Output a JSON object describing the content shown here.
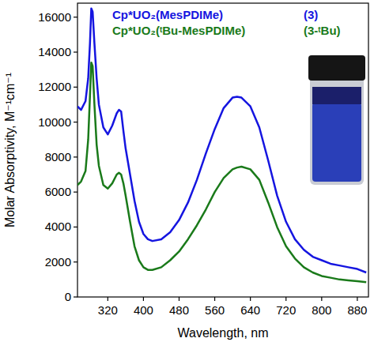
{
  "chart_data": {
    "type": "line",
    "x_label": "Wavelength, nm",
    "y_label": "Molar Absorptivity, M⁻¹cm⁻¹",
    "x": [
      252,
      260,
      270,
      276,
      280,
      283,
      286,
      290,
      295,
      300,
      310,
      320,
      330,
      340,
      345,
      350,
      355,
      360,
      370,
      380,
      390,
      400,
      410,
      420,
      440,
      460,
      480,
      500,
      520,
      540,
      560,
      580,
      600,
      610,
      620,
      640,
      660,
      680,
      700,
      720,
      740,
      760,
      780,
      800,
      820,
      840,
      860,
      880,
      900
    ],
    "series": [
      {
        "name": "Cp*UO₂(MesPDIMe)",
        "color": "#1515e0",
        "values": [
          10900,
          10700,
          11200,
          12500,
          14500,
          16500,
          16300,
          14500,
          12500,
          11000,
          9700,
          9300,
          9800,
          10500,
          10700,
          10600,
          9500,
          8500,
          7000,
          5500,
          4300,
          3600,
          3300,
          3200,
          3300,
          3700,
          4400,
          5400,
          6700,
          8200,
          9600,
          10800,
          11400,
          11450,
          11400,
          10900,
          9700,
          7800,
          5800,
          4300,
          3300,
          2700,
          2300,
          2100,
          1900,
          1800,
          1700,
          1600,
          1400
        ]
      },
      {
        "name": "Cp*UO₂(ᵗBu-MesPDIMe)",
        "color": "#1a7a1a",
        "values": [
          6400,
          6600,
          7200,
          9000,
          11500,
          13400,
          13200,
          11000,
          8700,
          7500,
          6400,
          6200,
          6500,
          7000,
          7100,
          7000,
          6500,
          5800,
          4300,
          2900,
          2100,
          1700,
          1550,
          1550,
          1700,
          2100,
          2600,
          3300,
          4100,
          5000,
          6000,
          6800,
          7300,
          7400,
          7450,
          7300,
          6700,
          5400,
          4000,
          2900,
          2200,
          1700,
          1400,
          1200,
          1100,
          1000,
          950,
          900,
          850
        ]
      }
    ],
    "annotations": [
      "(3)",
      "(3-ᵗBu)"
    ],
    "xlim": [
      252,
      905
    ],
    "xticks": [
      320,
      400,
      480,
      560,
      640,
      720,
      800,
      880
    ],
    "ylim": [
      0,
      16800
    ],
    "yticks": [
      0,
      2000,
      4000,
      6000,
      8000,
      10000,
      12000,
      14000,
      16000
    ],
    "legend": "top",
    "grid": false
  }
}
